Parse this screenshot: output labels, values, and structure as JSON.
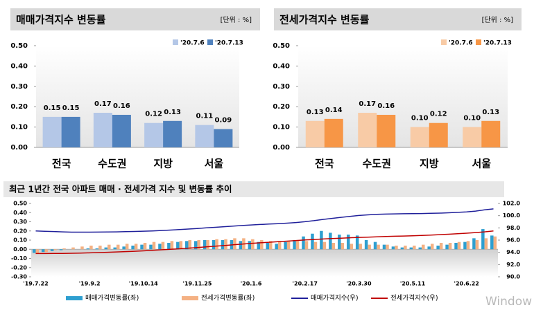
{
  "chart_data": [
    {
      "type": "bar",
      "title": "매매가격지수 변동률",
      "unit": "[단위 : %]",
      "categories": [
        "전국",
        "수도권",
        "지방",
        "서울"
      ],
      "series": [
        {
          "name": "'20.7.6",
          "color": "#b4c7e7",
          "values": [
            0.15,
            0.17,
            0.12,
            0.11
          ],
          "value_labels": [
            "0.15",
            "0.17",
            "0.12",
            "0.11"
          ]
        },
        {
          "name": "'20.7.13",
          "color": "#4f81bd",
          "values": [
            0.15,
            0.16,
            0.13,
            0.09
          ],
          "value_labels": [
            "0.15",
            "0.16",
            "0.13",
            "0.09"
          ]
        }
      ],
      "ylim": [
        0,
        0.5
      ],
      "yticks": [
        {
          "value": 0,
          "label": "0.00"
        },
        {
          "value": 0.1,
          "label": "0.10"
        },
        {
          "value": 0.2,
          "label": "0.20"
        },
        {
          "value": 0.3,
          "label": "0.30"
        },
        {
          "value": 0.4,
          "label": "0.40"
        },
        {
          "value": 0.5,
          "label": "0.50"
        }
      ]
    },
    {
      "type": "bar",
      "title": "전세가격지수 변동률",
      "unit": "[단위 : %]",
      "categories": [
        "전국",
        "수도권",
        "지방",
        "서울"
      ],
      "series": [
        {
          "name": "'20.7.6",
          "color": "#f8cba6",
          "values": [
            0.13,
            0.17,
            0.1,
            0.1
          ],
          "value_labels": [
            "0.13",
            "0.17",
            "0.10",
            "0.10"
          ]
        },
        {
          "name": "'20.7.13",
          "color": "#f79646",
          "values": [
            0.14,
            0.16,
            0.12,
            0.13
          ],
          "value_labels": [
            "0.14",
            "0.16",
            "0.12",
            "0.13"
          ]
        }
      ],
      "ylim": [
        0,
        0.5
      ],
      "yticks": [
        {
          "value": 0,
          "label": "0.00"
        },
        {
          "value": 0.1,
          "label": "0.10"
        },
        {
          "value": 0.2,
          "label": "0.20"
        },
        {
          "value": 0.3,
          "label": "0.30"
        },
        {
          "value": 0.4,
          "label": "0.40"
        },
        {
          "value": 0.5,
          "label": "0.50"
        }
      ]
    },
    {
      "type": "combo",
      "title": "최근 1년간 전국 아파트 매매 · 전세가격 지수 및 변동률 추이",
      "categories": [
        "'19.7.22",
        null,
        null,
        null,
        null,
        null,
        "'19.9.2",
        null,
        null,
        null,
        null,
        null,
        "'19.10.14",
        null,
        null,
        null,
        null,
        null,
        "'19.11.25",
        null,
        null,
        null,
        null,
        null,
        "'20.1.6",
        null,
        null,
        null,
        null,
        null,
        "'20.2.17",
        null,
        null,
        null,
        null,
        null,
        "'20.3.30",
        null,
        null,
        null,
        null,
        null,
        "'20.5.11",
        null,
        null,
        null,
        null,
        null,
        "'20.6.22",
        null,
        null,
        null
      ],
      "series": [
        {
          "name": "매매가격변동률(좌)",
          "kind": "bar",
          "color": "#2e9fd0",
          "values": [
            -0.04,
            -0.03,
            -0.02,
            -0.01,
            0.0,
            0.0,
            0.01,
            0.01,
            0.02,
            0.02,
            0.03,
            0.04,
            0.05,
            0.05,
            0.06,
            0.07,
            0.08,
            0.09,
            0.09,
            0.1,
            0.1,
            0.1,
            0.1,
            0.09,
            0.09,
            0.08,
            0.07,
            0.06,
            0.08,
            0.1,
            0.14,
            0.17,
            0.2,
            0.18,
            0.16,
            0.16,
            0.15,
            0.1,
            0.08,
            0.05,
            0.03,
            0.02,
            0.02,
            0.02,
            0.03,
            0.04,
            0.05,
            0.07,
            0.08,
            0.12,
            0.22,
            0.15
          ]
        },
        {
          "name": "전세가격변동률(좌)",
          "kind": "bar",
          "color": "#f4b183",
          "values": [
            -0.05,
            -0.03,
            -0.01,
            0.01,
            0.02,
            0.03,
            0.04,
            0.04,
            0.05,
            0.05,
            0.06,
            0.06,
            0.07,
            0.08,
            0.08,
            0.09,
            0.09,
            0.1,
            0.1,
            0.1,
            0.11,
            0.11,
            0.12,
            0.12,
            0.11,
            0.1,
            0.09,
            0.09,
            0.09,
            0.1,
            0.09,
            0.08,
            0.08,
            0.07,
            0.07,
            0.06,
            0.06,
            0.05,
            0.05,
            0.05,
            0.04,
            0.04,
            0.04,
            0.05,
            0.06,
            0.07,
            0.07,
            0.08,
            0.09,
            0.1,
            0.12,
            0.14
          ]
        },
        {
          "name": "매매가격지수(우)",
          "kind": "line",
          "axis": "y2",
          "color": "#1f1f9a",
          "values": [
            97.5,
            97.45,
            97.4,
            97.35,
            97.3,
            97.3,
            97.3,
            97.31,
            97.33,
            97.35,
            97.38,
            97.42,
            97.46,
            97.51,
            97.57,
            97.64,
            97.72,
            97.81,
            97.9,
            98.0,
            98.1,
            98.2,
            98.3,
            98.39,
            98.48,
            98.56,
            98.63,
            98.69,
            98.77,
            98.87,
            99.01,
            99.18,
            99.38,
            99.56,
            99.72,
            99.88,
            100.03,
            100.13,
            100.21,
            100.26,
            100.29,
            100.31,
            100.33,
            100.35,
            100.38,
            100.42,
            100.47,
            100.54,
            100.62,
            100.74,
            100.96,
            101.11
          ]
        },
        {
          "name": "전세가격지수(우)",
          "kind": "line",
          "axis": "y2",
          "color": "#c00000",
          "values": [
            93.8,
            93.8,
            93.81,
            93.83,
            93.85,
            93.88,
            93.92,
            93.96,
            94.01,
            94.06,
            94.12,
            94.18,
            94.25,
            94.33,
            94.41,
            94.5,
            94.59,
            94.69,
            94.79,
            94.89,
            95.0,
            95.11,
            95.23,
            95.35,
            95.46,
            95.56,
            95.65,
            95.74,
            95.83,
            95.93,
            96.02,
            96.1,
            96.18,
            96.25,
            96.32,
            96.38,
            96.44,
            96.49,
            96.54,
            96.59,
            96.63,
            96.67,
            96.71,
            96.76,
            96.82,
            96.89,
            96.96,
            97.04,
            97.13,
            97.23,
            97.35,
            97.49
          ]
        }
      ],
      "ylim": [
        -0.3,
        0.5
      ],
      "yticks": [
        {
          "value": -0.3,
          "label": "-0.30"
        },
        {
          "value": -0.2,
          "label": "-0.20"
        },
        {
          "value": -0.1,
          "label": "-0.10"
        },
        {
          "value": 0,
          "label": "0.00"
        },
        {
          "value": 0.1,
          "label": "0.10"
        },
        {
          "value": 0.2,
          "label": "0.20"
        },
        {
          "value": 0.3,
          "label": "0.30"
        },
        {
          "value": 0.4,
          "label": "0.40"
        },
        {
          "value": 0.5,
          "label": "0.50"
        }
      ],
      "y2lim": [
        90,
        102
      ],
      "y2ticks": [
        {
          "value": 90,
          "label": "90.0"
        },
        {
          "value": 92,
          "label": "92.0"
        },
        {
          "value": 94,
          "label": "94.0"
        },
        {
          "value": 96,
          "label": "96.0"
        },
        {
          "value": 98,
          "label": "98.0"
        },
        {
          "value": 100,
          "label": "100.0"
        },
        {
          "value": 102,
          "label": "102.0"
        }
      ]
    }
  ],
  "watermark": "Window"
}
